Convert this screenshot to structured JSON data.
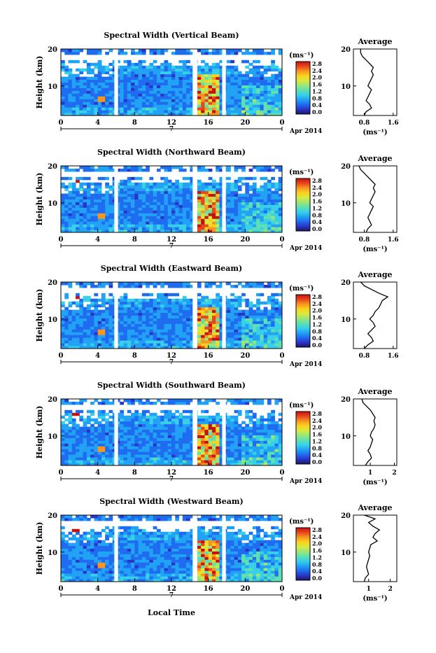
{
  "figure": {
    "xlabel": "Local Time",
    "date_label": "Apr 2014",
    "day_label": "7",
    "unit_label": "(ms⁻¹)",
    "average_title": "Average",
    "ylabel": "Height (km)"
  },
  "colormap": [
    "#1a1a66",
    "#2b34c8",
    "#1f6cf0",
    "#22a2f5",
    "#37d0e8",
    "#5fe0b0",
    "#9ae678",
    "#d8ea40",
    "#fbd21e",
    "#f89620",
    "#e8461c",
    "#c81010"
  ],
  "colorbar_ticks": [
    "0.0",
    "0.4",
    "0.8",
    "1.2",
    "1.6",
    "2.0",
    "2.4",
    "2.8"
  ],
  "chart_data": [
    {
      "type": "heatmap",
      "title": "Spectral Width (Vertical Beam)",
      "xlabel": "Local Time",
      "ylabel": "Height (km)",
      "x_ticks": [
        "0",
        "4",
        "8",
        "12",
        "16",
        "20",
        "0"
      ],
      "y_ticks": [
        "10",
        "20"
      ],
      "xlim": [
        0,
        24
      ],
      "ylim": [
        2,
        20
      ],
      "clim": [
        0,
        2.8
      ],
      "colorbar_label": "(ms⁻¹)",
      "data_gaps_hours": [
        [
          5.8,
          6.2
        ],
        [
          14.3,
          14.8
        ],
        [
          17.5,
          17.9
        ]
      ],
      "average_profile": {
        "xlabel": "(ms⁻¹)",
        "x_ticks": [
          "0.8",
          "1.6"
        ],
        "xlim": [
          0.5,
          1.7
        ],
        "heights_km": [
          2,
          3,
          4,
          5,
          6,
          7,
          8,
          9,
          10,
          11,
          12,
          13,
          14,
          15,
          16,
          17,
          18,
          19,
          20
        ],
        "values": [
          0.8,
          0.85,
          1.0,
          0.95,
          0.85,
          0.9,
          0.95,
          1.0,
          0.9,
          0.95,
          1.0,
          1.05,
          1.0,
          1.05,
          0.95,
          0.85,
          0.75,
          0.7,
          0.7
        ]
      }
    },
    {
      "type": "heatmap",
      "title": "Spectral Width (Northward Beam)",
      "xlabel": "Local Time",
      "ylabel": "Height (km)",
      "x_ticks": [
        "0",
        "4",
        "8",
        "12",
        "16",
        "20",
        "0"
      ],
      "y_ticks": [
        "10",
        "20"
      ],
      "xlim": [
        0,
        24
      ],
      "ylim": [
        2,
        20
      ],
      "clim": [
        0,
        2.8
      ],
      "colorbar_label": "(ms⁻¹)",
      "data_gaps_hours": [
        [
          5.8,
          6.2
        ],
        [
          14.3,
          14.8
        ],
        [
          17.5,
          17.9
        ]
      ],
      "average_profile": {
        "xlabel": "(ms⁻¹)",
        "x_ticks": [
          "0.8",
          "1.6"
        ],
        "xlim": [
          0.5,
          1.7
        ],
        "heights_km": [
          2,
          3,
          4,
          5,
          6,
          7,
          8,
          9,
          10,
          11,
          12,
          13,
          14,
          15,
          16,
          17,
          18,
          19,
          20
        ],
        "values": [
          0.85,
          0.9,
          1.0,
          0.95,
          0.9,
          0.95,
          1.0,
          1.05,
          0.95,
          1.0,
          1.05,
          1.1,
          1.05,
          1.1,
          1.0,
          0.9,
          0.8,
          0.7,
          0.65
        ]
      }
    },
    {
      "type": "heatmap",
      "title": "Spectral Width (Eastward Beam)",
      "xlabel": "Local Time",
      "ylabel": "Height (km)",
      "x_ticks": [
        "0",
        "4",
        "8",
        "12",
        "16",
        "20",
        "0"
      ],
      "y_ticks": [
        "10",
        "20"
      ],
      "xlim": [
        0,
        24
      ],
      "ylim": [
        2,
        20
      ],
      "clim": [
        0,
        2.8
      ],
      "colorbar_label": "(ms⁻¹)",
      "data_gaps_hours": [
        [
          5.8,
          6.2
        ],
        [
          14.3,
          14.8
        ],
        [
          17.5,
          17.9
        ]
      ],
      "average_profile": {
        "xlabel": "",
        "x_ticks": [
          "0.8",
          "1.6"
        ],
        "xlim": [
          0.5,
          1.7
        ],
        "heights_km": [
          2,
          3,
          4,
          5,
          6,
          7,
          8,
          9,
          10,
          11,
          12,
          13,
          14,
          15,
          16,
          17,
          18,
          19,
          20
        ],
        "values": [
          0.8,
          0.9,
          1.05,
          1.0,
          0.9,
          1.0,
          1.1,
          1.05,
          0.95,
          1.05,
          1.1,
          1.2,
          1.25,
          1.3,
          1.45,
          1.2,
          1.0,
          0.8,
          0.7
        ]
      }
    },
    {
      "type": "heatmap",
      "title": "Spectral Width (Southward Beam)",
      "xlabel": "Local Time",
      "ylabel": "Height (km)",
      "x_ticks": [
        "0",
        "4",
        "8",
        "12",
        "16",
        "20",
        "0"
      ],
      "y_ticks": [
        "10",
        "20"
      ],
      "xlim": [
        0,
        24
      ],
      "ylim": [
        2,
        20
      ],
      "clim": [
        0,
        2.8
      ],
      "colorbar_label": "(ms⁻¹)",
      "data_gaps_hours": [
        [
          5.8,
          6.2
        ],
        [
          14.3,
          14.8
        ],
        [
          17.5,
          17.9
        ]
      ],
      "average_profile": {
        "xlabel": "(ms⁻¹)",
        "x_ticks": [
          "1",
          "2"
        ],
        "xlim": [
          0.3,
          2.1
        ],
        "heights_km": [
          2,
          3,
          4,
          5,
          6,
          7,
          8,
          9,
          10,
          11,
          12,
          13,
          14,
          15,
          16,
          17,
          18,
          19,
          20
        ],
        "values": [
          0.8,
          0.9,
          1.05,
          1.0,
          0.9,
          1.0,
          1.05,
          1.1,
          1.0,
          1.05,
          1.15,
          1.2,
          1.15,
          1.2,
          1.1,
          1.0,
          0.85,
          0.7,
          0.65
        ]
      }
    },
    {
      "type": "heatmap",
      "title": "Spectral Width (Westward Beam)",
      "xlabel": "Local Time",
      "ylabel": "Height (km)",
      "x_ticks": [
        "0",
        "4",
        "8",
        "12",
        "16",
        "20",
        "0"
      ],
      "y_ticks": [
        "10",
        "20"
      ],
      "xlim": [
        0,
        24
      ],
      "ylim": [
        2,
        20
      ],
      "clim": [
        0,
        2.8
      ],
      "colorbar_label": "(ms⁻¹)",
      "data_gaps_hours": [
        [
          5.8,
          6.2
        ],
        [
          14.3,
          14.8
        ],
        [
          17.5,
          17.9
        ]
      ],
      "average_profile": {
        "xlabel": "(ms⁻¹)",
        "x_ticks": [
          "1",
          "2"
        ],
        "xlim": [
          0.3,
          2.3
        ],
        "heights_km": [
          2,
          3,
          4,
          5,
          6,
          7,
          8,
          9,
          10,
          11,
          12,
          13,
          14,
          15,
          16,
          17,
          18,
          19,
          20
        ],
        "values": [
          0.8,
          0.85,
          1.0,
          0.95,
          0.9,
          0.95,
          1.0,
          1.05,
          1.0,
          1.05,
          1.1,
          1.4,
          1.2,
          1.3,
          1.5,
          1.2,
          1.0,
          1.3,
          0.8
        ]
      }
    }
  ]
}
